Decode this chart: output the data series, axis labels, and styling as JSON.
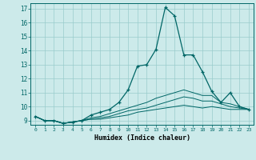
{
  "title": "",
  "xlabel": "Humidex (Indice chaleur)",
  "ylabel": "",
  "background_color": "#cceaea",
  "grid_color": "#99cccc",
  "line_color": "#006666",
  "xlim": [
    -0.5,
    23.5
  ],
  "ylim": [
    8.7,
    17.4
  ],
  "xticks": [
    0,
    1,
    2,
    3,
    4,
    5,
    6,
    7,
    8,
    9,
    10,
    11,
    12,
    13,
    14,
    15,
    16,
    17,
    18,
    19,
    20,
    21,
    22,
    23
  ],
  "yticks": [
    9,
    10,
    11,
    12,
    13,
    14,
    15,
    16,
    17
  ],
  "series": [
    [
      9.3,
      9.0,
      9.0,
      8.8,
      8.9,
      9.0,
      9.4,
      9.6,
      9.8,
      10.3,
      11.2,
      12.9,
      13.0,
      14.1,
      17.1,
      16.5,
      13.7,
      13.7,
      12.5,
      11.1,
      10.3,
      11.0,
      10.0,
      9.8
    ],
    [
      9.3,
      9.0,
      9.0,
      8.8,
      8.9,
      9.0,
      9.2,
      9.3,
      9.5,
      9.7,
      9.9,
      10.1,
      10.3,
      10.6,
      10.8,
      11.0,
      11.2,
      11.0,
      10.8,
      10.8,
      10.3,
      10.2,
      10.0,
      9.8
    ],
    [
      9.3,
      9.0,
      9.0,
      8.8,
      8.9,
      9.0,
      9.1,
      9.2,
      9.3,
      9.5,
      9.7,
      9.8,
      9.9,
      10.1,
      10.3,
      10.5,
      10.7,
      10.6,
      10.4,
      10.4,
      10.2,
      10.0,
      9.9,
      9.8
    ],
    [
      9.3,
      9.0,
      9.0,
      8.8,
      8.9,
      9.0,
      9.1,
      9.1,
      9.2,
      9.3,
      9.4,
      9.6,
      9.7,
      9.8,
      9.9,
      10.0,
      10.1,
      10.0,
      9.9,
      10.0,
      9.9,
      9.8,
      9.8,
      9.8
    ]
  ]
}
